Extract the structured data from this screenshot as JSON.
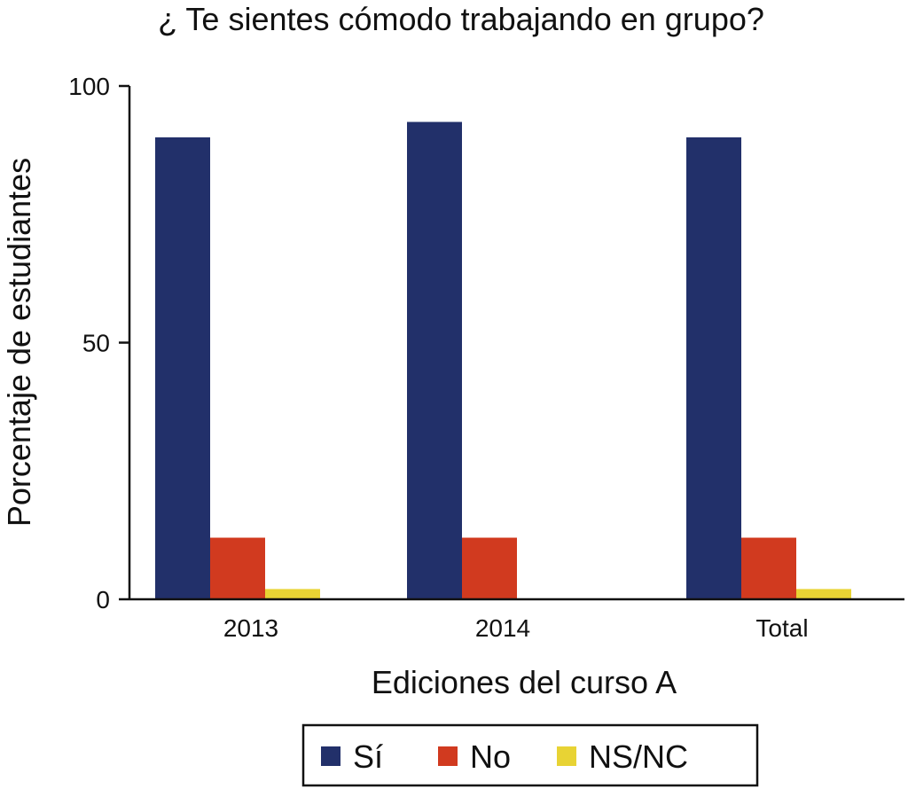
{
  "chart_data": {
    "type": "bar",
    "title": "¿ Te sientes cómodo trabajando en grupo?",
    "xlabel": "Ediciones del curso A",
    "ylabel": "Porcentaje de estudiantes",
    "categories": [
      "2013",
      "2014",
      "Total"
    ],
    "series": [
      {
        "name": "Sí",
        "color": "#22306a",
        "values": [
          90,
          93,
          90
        ]
      },
      {
        "name": "No",
        "color": "#d13a1f",
        "values": [
          12,
          12,
          12
        ]
      },
      {
        "name": "NS/NC",
        "color": "#e8d334",
        "values": [
          2,
          0,
          2
        ]
      }
    ],
    "ylim": [
      0,
      100
    ],
    "yticks": [
      0,
      50,
      100
    ],
    "grid": false,
    "legend_position": "bottom-center"
  }
}
